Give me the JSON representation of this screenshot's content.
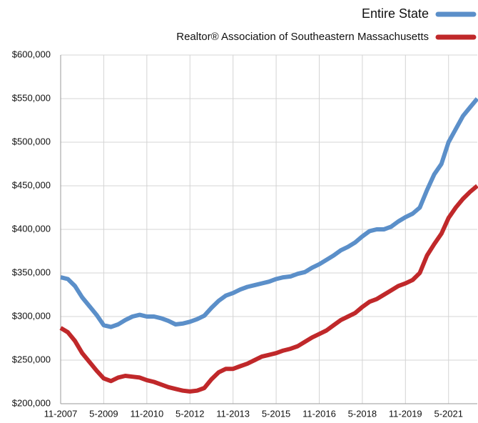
{
  "chart_data": {
    "type": "line",
    "x": [
      "11-2007",
      "2-2008",
      "5-2008",
      "8-2008",
      "11-2008",
      "2-2009",
      "5-2009",
      "8-2009",
      "11-2009",
      "2-2010",
      "5-2010",
      "8-2010",
      "11-2010",
      "2-2011",
      "5-2011",
      "8-2011",
      "11-2011",
      "2-2012",
      "5-2012",
      "8-2012",
      "11-2012",
      "2-2013",
      "5-2013",
      "8-2013",
      "11-2013",
      "2-2014",
      "5-2014",
      "8-2014",
      "11-2014",
      "2-2015",
      "5-2015",
      "8-2015",
      "11-2015",
      "2-2016",
      "5-2016",
      "8-2016",
      "11-2016",
      "2-2017",
      "5-2017",
      "8-2017",
      "11-2017",
      "2-2018",
      "5-2018",
      "8-2018",
      "11-2018",
      "2-2019",
      "5-2019",
      "8-2019",
      "11-2019",
      "2-2020",
      "5-2020",
      "8-2020",
      "11-2020",
      "2-2021",
      "5-2021",
      "8-2021",
      "11-2021",
      "2-2022",
      "5-2022"
    ],
    "series": [
      {
        "name": "Entire State",
        "color": "#5b8fc9",
        "values": [
          345000,
          343000,
          335000,
          322000,
          312000,
          302000,
          290000,
          288000,
          291000,
          296000,
          300000,
          302000,
          300000,
          300000,
          298000,
          295000,
          291000,
          292000,
          294000,
          297000,
          301000,
          310000,
          318000,
          324000,
          327000,
          331000,
          334000,
          336000,
          338000,
          340000,
          343000,
          345000,
          346000,
          349000,
          351000,
          356000,
          360000,
          365000,
          370000,
          376000,
          380000,
          385000,
          392000,
          398000,
          400000,
          400000,
          403000,
          409000,
          414000,
          418000,
          425000,
          445000,
          463000,
          475000,
          500000,
          515000,
          530000,
          540000,
          550000
        ]
      },
      {
        "name": "Realtor® Association of Southeastern Massachusetts",
        "color": "#c0282a",
        "values": [
          287000,
          282000,
          272000,
          258000,
          248000,
          238000,
          229000,
          226000,
          230000,
          232000,
          231000,
          230000,
          227000,
          225000,
          222000,
          219000,
          217000,
          215000,
          214000,
          215000,
          218000,
          228000,
          236000,
          240000,
          240000,
          243000,
          246000,
          250000,
          254000,
          256000,
          258000,
          261000,
          263000,
          266000,
          271000,
          276000,
          280000,
          284000,
          290000,
          296000,
          300000,
          304000,
          311000,
          317000,
          320000,
          325000,
          330000,
          335000,
          338000,
          342000,
          350000,
          370000,
          383000,
          395000,
          413000,
          425000,
          435000,
          443000,
          450000
        ]
      }
    ],
    "xticks": [
      "11-2007",
      "5-2009",
      "11-2010",
      "5-2012",
      "11-2013",
      "5-2015",
      "11-2016",
      "5-2018",
      "11-2019",
      "5-2021"
    ],
    "ylim": [
      200000,
      600000
    ],
    "yticks": [
      {
        "value": 200000,
        "label": "$200,000"
      },
      {
        "value": 250000,
        "label": "$250,000"
      },
      {
        "value": 300000,
        "label": "$300,000"
      },
      {
        "value": 350000,
        "label": "$350,000"
      },
      {
        "value": 400000,
        "label": "$400,000"
      },
      {
        "value": 450000,
        "label": "$450,000"
      },
      {
        "value": 500000,
        "label": "$500,000"
      },
      {
        "value": 550000,
        "label": "$550,000"
      },
      {
        "value": 600000,
        "label": "$600,000"
      }
    ],
    "grid": true,
    "legend": "top-right"
  }
}
